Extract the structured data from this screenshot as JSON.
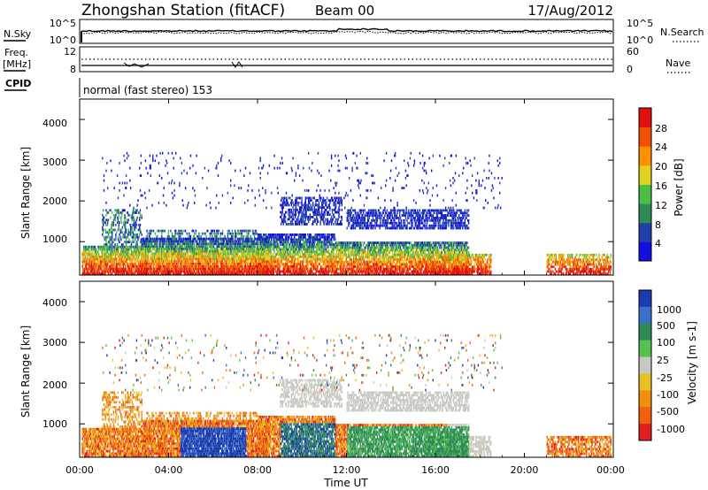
{
  "header": {
    "title": "Zhongshan Station (fitACF)",
    "beam": "Beam 00",
    "date": "17/Aug/2012"
  },
  "noise_panel": {
    "left_label": "N.Sky",
    "left_ticks": [
      "10^5",
      "10^0"
    ],
    "right_label": "N.Search",
    "right_ticks": [
      "10^5",
      "10^0"
    ],
    "right_legend_line": "dotted"
  },
  "freq_panel": {
    "left_label_line1": "Freq.",
    "left_label_line2": "[MHz]",
    "left_ticks": [
      "12",
      "8"
    ],
    "right_label": "Nave",
    "right_ticks": [
      "60",
      "0"
    ]
  },
  "cpid_panel": {
    "label": "CPID",
    "value": "normal (fast stereo) 153"
  },
  "x_axis": {
    "label": "Time UT",
    "ticks": [
      "00:00",
      "04:00",
      "08:00",
      "12:00",
      "16:00",
      "20:00",
      "00:00"
    ]
  },
  "chart_data": [
    {
      "type": "heatmap",
      "name": "power",
      "ylabel": "Slant Range [km]",
      "y_ticks": [
        "1000",
        "2000",
        "3000",
        "4000"
      ],
      "ylim": [
        180,
        4500
      ],
      "xlim_hours": [
        0,
        24
      ],
      "colorbar": {
        "label": "Power [dB]",
        "tick_labels": [
          "4",
          "8",
          "12",
          "16",
          "20",
          "24",
          "28"
        ],
        "range": [
          0,
          30
        ],
        "colors": [
          "#1010e0",
          "#2040a8",
          "#2e8b57",
          "#48c048",
          "#e0d020",
          "#ff9000",
          "#f05000",
          "#e01010"
        ]
      }
    },
    {
      "type": "heatmap",
      "name": "velocity",
      "ylabel": "Slant Range [km]",
      "y_ticks": [
        "1000",
        "2000",
        "3000",
        "4000"
      ],
      "ylim": [
        180,
        4500
      ],
      "xlim_hours": [
        0,
        24
      ],
      "colorbar": {
        "label": "Velocity [m s-1]",
        "tick_labels": [
          "1000",
          "500",
          "100",
          "25",
          "-25",
          "-100",
          "-500",
          "-1000"
        ],
        "colors": [
          "#1a3cb0",
          "#3a70c8",
          "#2e8b57",
          "#58c050",
          "#c8c8c0",
          "#e8c020",
          "#f09010",
          "#f06010",
          "#e02020"
        ]
      }
    }
  ]
}
